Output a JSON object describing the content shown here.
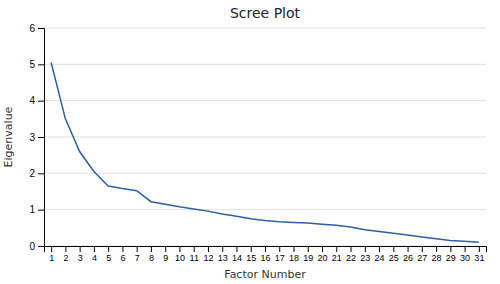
{
  "chart_data": {
    "type": "line",
    "title": "Scree Plot",
    "xlabel": "Factor Number",
    "ylabel": "Eigenvalue",
    "x": [
      1,
      2,
      3,
      4,
      5,
      6,
      7,
      8,
      9,
      10,
      11,
      12,
      13,
      14,
      15,
      16,
      17,
      18,
      19,
      20,
      21,
      22,
      23,
      24,
      25,
      26,
      27,
      28,
      29,
      30,
      31
    ],
    "values": [
      5.05,
      3.5,
      2.6,
      2.05,
      1.65,
      1.58,
      1.52,
      1.22,
      1.15,
      1.08,
      1.02,
      0.96,
      0.88,
      0.82,
      0.75,
      0.7,
      0.67,
      0.65,
      0.63,
      0.6,
      0.57,
      0.52,
      0.45,
      0.4,
      0.35,
      0.3,
      0.25,
      0.2,
      0.15,
      0.13,
      0.1
    ],
    "color": "#2E5FA3",
    "xlim": [
      0.5,
      31.5
    ],
    "xticks": [
      1,
      2,
      3,
      4,
      5,
      6,
      7,
      8,
      9,
      10,
      11,
      12,
      13,
      14,
      15,
      16,
      17,
      18,
      19,
      20,
      21,
      22,
      23,
      24,
      25,
      26,
      27,
      28,
      29,
      30,
      31
    ],
    "ylim": [
      0,
      6
    ],
    "yticks": [
      0,
      1,
      2,
      3,
      4,
      5,
      6
    ],
    "grid": true
  }
}
